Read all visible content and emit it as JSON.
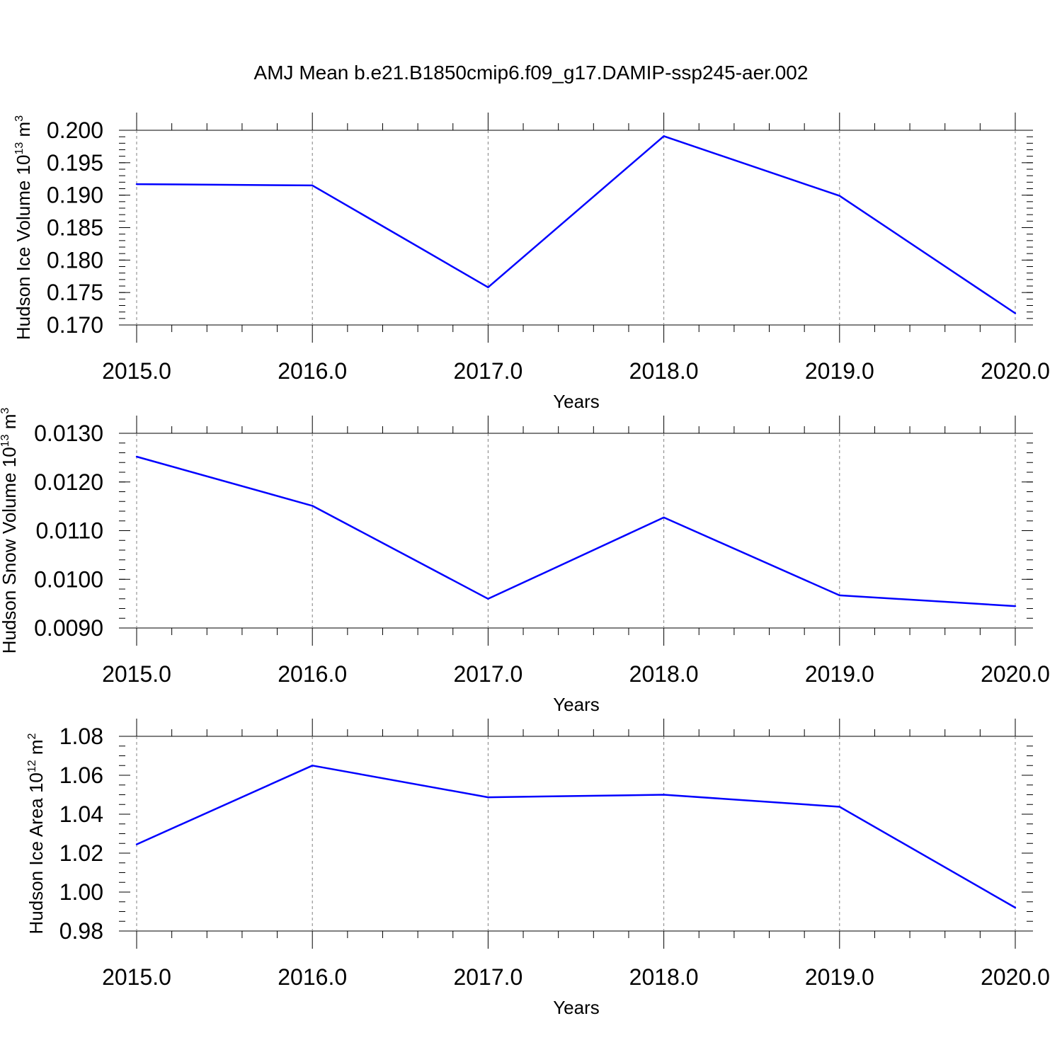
{
  "title": "AMJ Mean b.e21.B1850cmip6.f09_g17.DAMIP-ssp245-aer.002",
  "colors": {
    "series": "#0000ff",
    "axis": "#000000",
    "grid": "#808080",
    "background": "#ffffff"
  },
  "chart_data": [
    {
      "type": "line",
      "xlabel": "Years",
      "ylabel": {
        "text": "Hudson Ice Volume 10",
        "exp": "13",
        "unit": "m",
        "unit_exp": "3"
      },
      "x": [
        2015,
        2016,
        2017,
        2018,
        2019,
        2020
      ],
      "x_tick_labels": [
        "2015.0",
        "2016.0",
        "2017.0",
        "2018.0",
        "2019.0",
        "2020.0"
      ],
      "xlim": [
        2015,
        2020.1
      ],
      "ylim": [
        0.17,
        0.2
      ],
      "y_tick_values": [
        0.17,
        0.175,
        0.18,
        0.185,
        0.19,
        0.195,
        0.2
      ],
      "y_tick_labels": [
        "0.170",
        "0.175",
        "0.180",
        "0.185",
        "0.190",
        "0.195",
        "0.200"
      ],
      "y_minor_step": 0.001,
      "x_grid": "dashed vertical lines at major x ticks",
      "series": [
        {
          "values": [
            0.1917,
            0.1915,
            0.1758,
            0.1991,
            0.1899,
            0.1718
          ]
        }
      ]
    },
    {
      "type": "line",
      "xlabel": "Years",
      "ylabel": {
        "text": "Hudson Snow Volume 10",
        "exp": "13",
        "unit": "m",
        "unit_exp": "3"
      },
      "x": [
        2015,
        2016,
        2017,
        2018,
        2019,
        2020
      ],
      "x_tick_labels": [
        "2015.0",
        "2016.0",
        "2017.0",
        "2018.0",
        "2019.0",
        "2020.0"
      ],
      "xlim": [
        2015,
        2020.1
      ],
      "ylim": [
        0.009,
        0.013
      ],
      "y_tick_values": [
        0.009,
        0.01,
        0.011,
        0.012,
        0.013
      ],
      "y_tick_labels": [
        "0.0090",
        "0.0100",
        "0.0110",
        "0.0120",
        "0.0130"
      ],
      "y_minor_step": 0.0002,
      "x_grid": "dashed vertical lines at major x ticks",
      "series": [
        {
          "values": [
            0.01252,
            0.01151,
            0.0096,
            0.01127,
            0.00967,
            0.00945
          ]
        }
      ]
    },
    {
      "type": "line",
      "xlabel": "Years",
      "ylabel": {
        "text": "Hudson Ice Area 10",
        "exp": "12",
        "unit": "m",
        "unit_exp": "2"
      },
      "x": [
        2015,
        2016,
        2017,
        2018,
        2019,
        2020
      ],
      "x_tick_labels": [
        "2015.0",
        "2016.0",
        "2017.0",
        "2018.0",
        "2019.0",
        "2020.0"
      ],
      "xlim": [
        2015,
        2020.1
      ],
      "ylim": [
        0.98,
        1.08
      ],
      "y_tick_values": [
        0.98,
        1.0,
        1.02,
        1.04,
        1.06,
        1.08
      ],
      "y_tick_labels": [
        "0.98",
        "1.00",
        "1.02",
        "1.04",
        "1.06",
        "1.08"
      ],
      "y_minor_step": 0.005,
      "x_grid": "dashed vertical lines at major x ticks",
      "series": [
        {
          "values": [
            1.0245,
            1.065,
            1.0487,
            1.05,
            1.0438,
            0.992
          ]
        }
      ]
    }
  ]
}
